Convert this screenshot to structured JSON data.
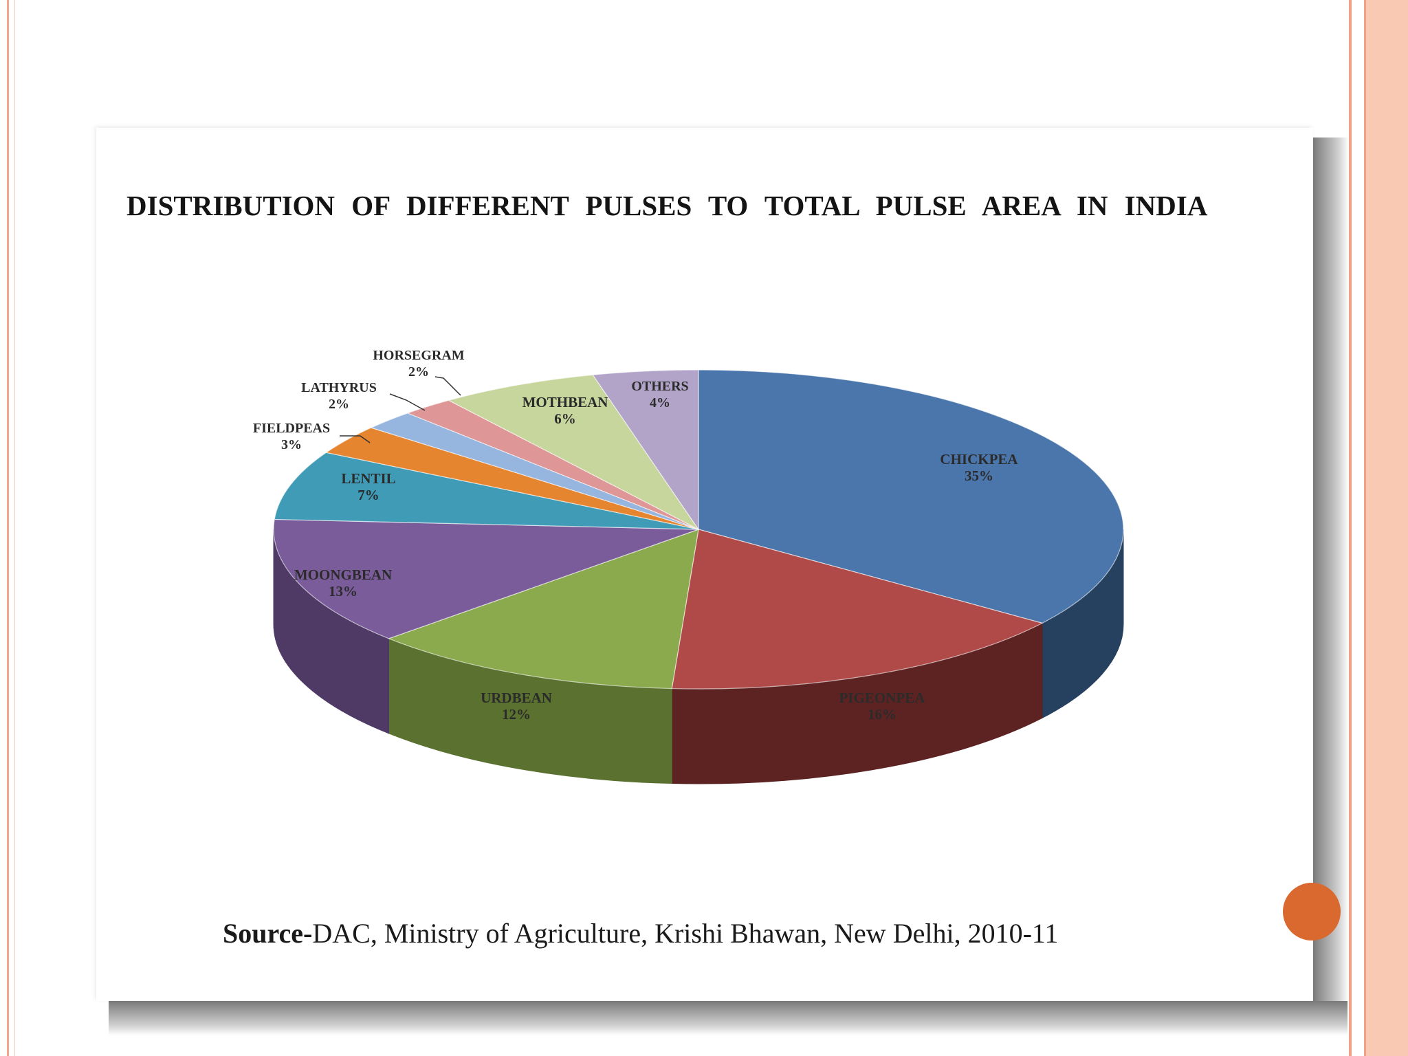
{
  "slide": {
    "title": "DISTRIBUTION OF DIFFERENT PULSES TO TOTAL PULSE AREA IN INDIA",
    "source_label": "Source-",
    "source_text": "DAC, Ministry of Agriculture, Krishi Bhawan, New Delhi, 2010-11"
  },
  "chart_data": {
    "type": "pie",
    "style": "3d",
    "title": "DISTRIBUTION OF DIFFERENT PULSES TO TOTAL PULSE AREA IN INDIA",
    "slices": [
      {
        "label": "CHICKPEA",
        "value": 35,
        "value_label": "35%",
        "color": "#4a76ab",
        "side_color": "#26405f"
      },
      {
        "label": "PIGEONPEA",
        "value": 16,
        "value_label": "16%",
        "color": "#b04a48",
        "side_color": "#5c2322"
      },
      {
        "label": "URDBEAN",
        "value": 12,
        "value_label": "12%",
        "color": "#8aaa4d",
        "side_color": "#5a7130"
      },
      {
        "label": "MOONGBEAN",
        "value": 13,
        "value_label": "13%",
        "color": "#7a5c9a",
        "side_color": "#4f3a66"
      },
      {
        "label": "LENTIL",
        "value": 7,
        "value_label": "7%",
        "color": "#3f9bb6",
        "side_color": "#24657a"
      },
      {
        "label": "FIELDPEAS",
        "value": 3,
        "value_label": "3%",
        "color": "#e6852f",
        "side_color": "#9c551b"
      },
      {
        "label": "LATHYRUS",
        "value": 2,
        "value_label": "2%",
        "color": "#97b6df",
        "side_color": "#6582a8"
      },
      {
        "label": "HORSEGRAM",
        "value": 2,
        "value_label": "2%",
        "color": "#df9696",
        "side_color": "#9e6060"
      },
      {
        "label": "MOTHBEAN",
        "value": 6,
        "value_label": "6%",
        "color": "#c7d69d",
        "side_color": "#8f9d66"
      },
      {
        "label": "OTHERS",
        "value": 4,
        "value_label": "4%",
        "color": "#b1a4c8",
        "side_color": "#7d7096"
      }
    ]
  }
}
